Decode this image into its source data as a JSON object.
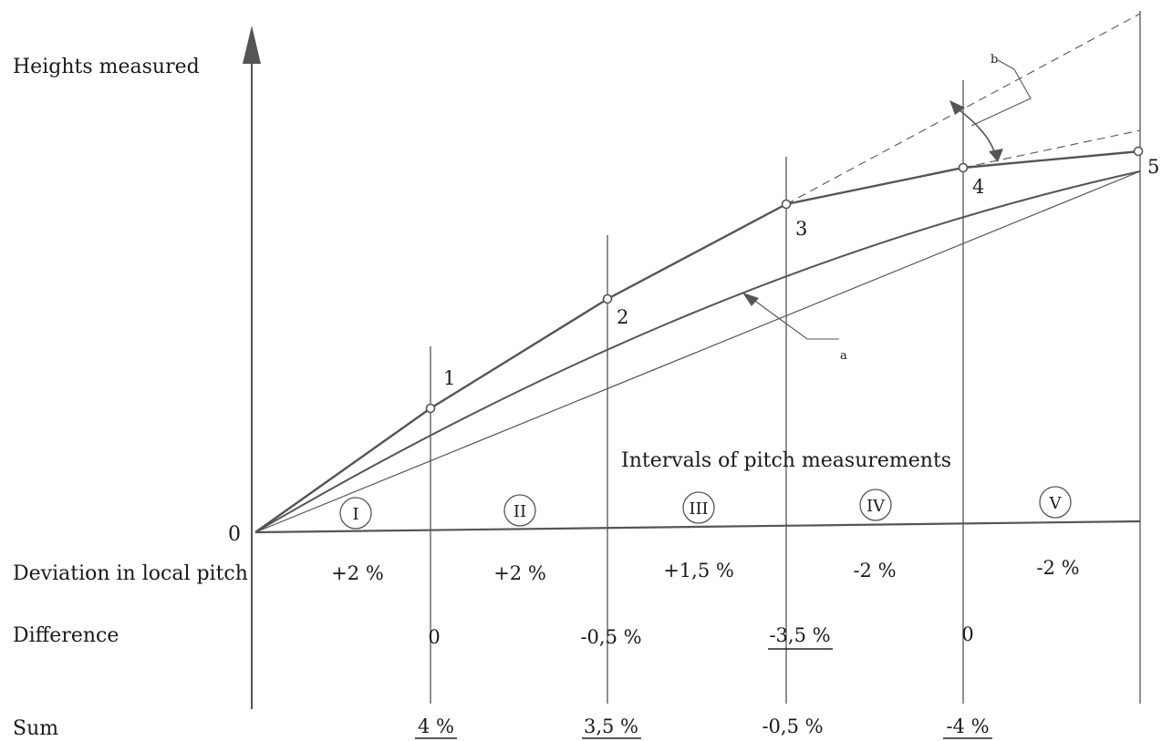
{
  "axis": {
    "y_label": "Heights measured",
    "origin_label": "0",
    "x_label": "Intervals of pitch measurements"
  },
  "intervals": [
    "I",
    "II",
    "III",
    "IV",
    "V"
  ],
  "points": [
    "1",
    "2",
    "3",
    "4",
    "5"
  ],
  "annotations": {
    "a": "a",
    "b": "b"
  },
  "rows": [
    {
      "label": "Deviation in local pitch",
      "values": [
        "+2 %",
        "+2 %",
        "+1,5 %",
        "-2 %",
        "-2 %"
      ]
    },
    {
      "label": "Difference",
      "values": [
        "0",
        "-0,5 %",
        "-3,5 %",
        "0"
      ],
      "underline": [
        false,
        false,
        true,
        false
      ]
    },
    {
      "label": "Sum",
      "values": [
        "4 %",
        "3,5 %",
        "-0,5 %",
        "-4 %"
      ],
      "underline": [
        true,
        true,
        false,
        true
      ]
    }
  ],
  "colors": {
    "line": "#555555",
    "text": "#1a1a1a"
  }
}
